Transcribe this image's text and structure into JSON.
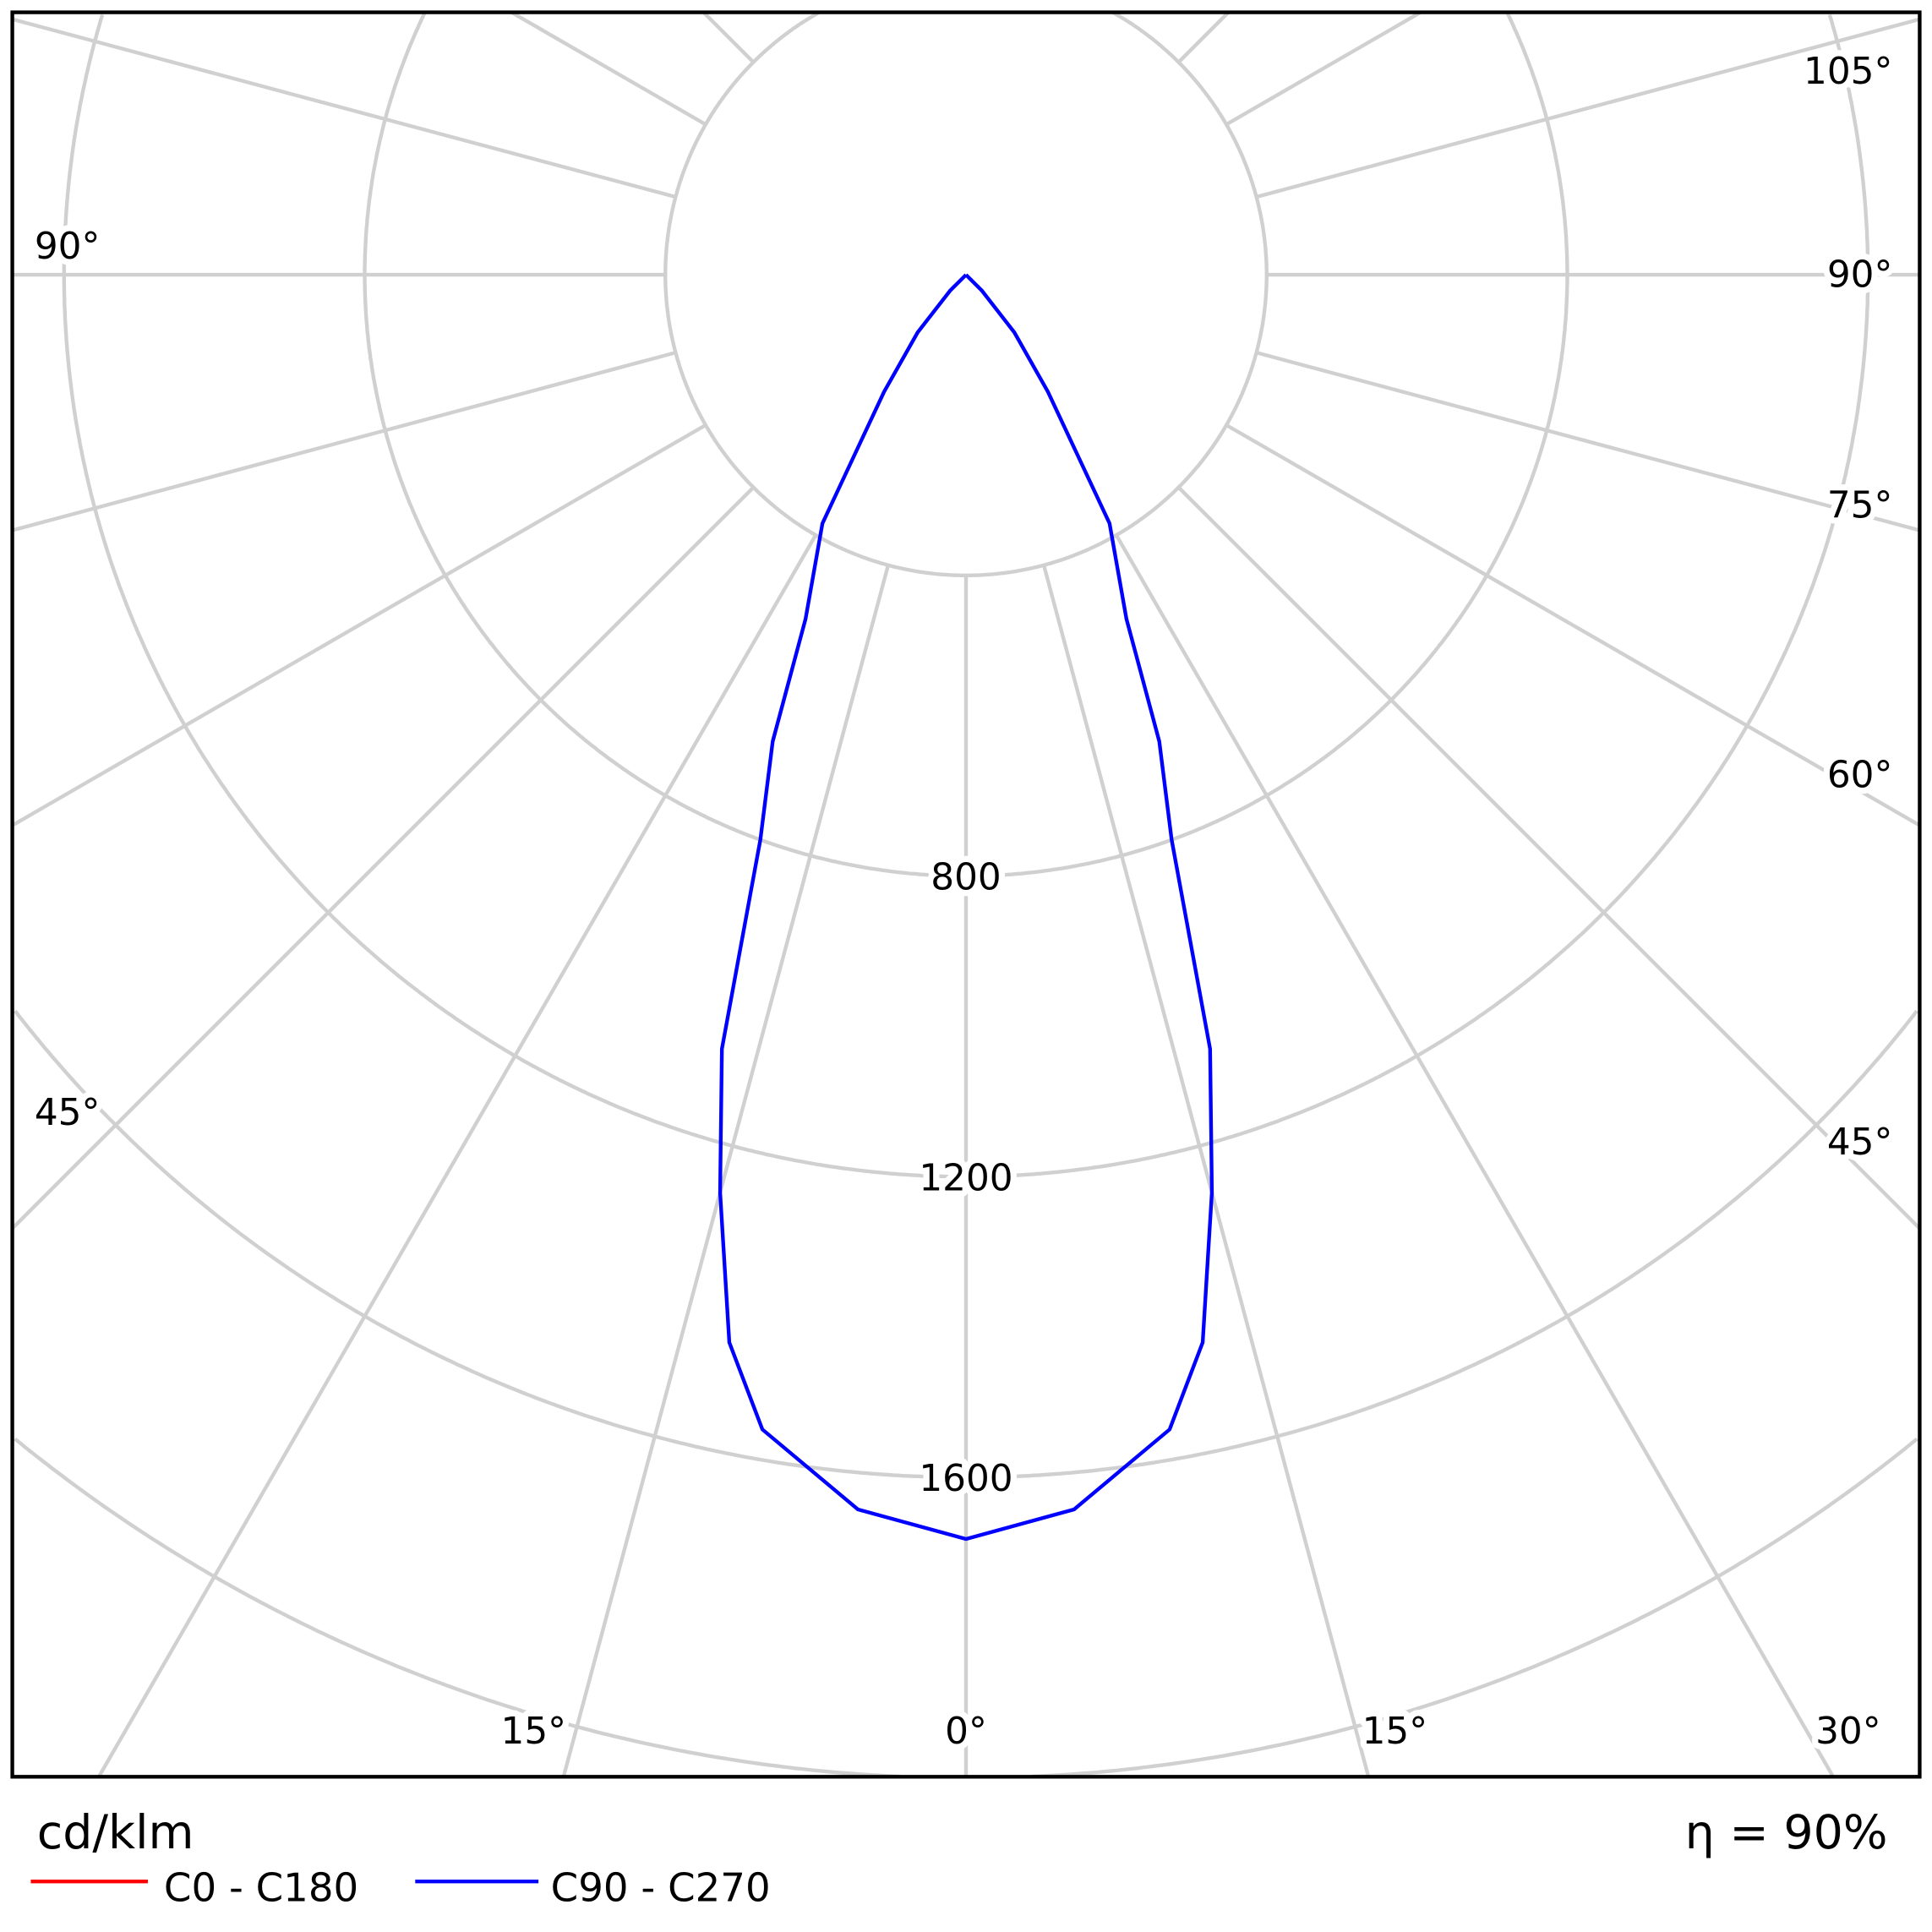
{
  "chart_data": {
    "type": "polar-line",
    "unit_label": "cd/klm",
    "efficiency_label": "η = 90%",
    "radial_ticks": [
      800,
      1200,
      1600
    ],
    "radial_grid_step": 400,
    "angle_grid_step_deg": 15,
    "grid": true,
    "angle_labels": {
      "bottom": [
        "15°",
        "0°",
        "15°",
        "30°"
      ],
      "right": [
        "45°",
        "60°",
        "75°",
        "90°",
        "105°"
      ],
      "left": [
        "45°",
        "90°"
      ]
    },
    "legend_placement": "bottom-left",
    "series": [
      {
        "name": "C0 - C180",
        "color": "#ff0000",
        "points": []
      },
      {
        "name": "C90 - C270",
        "color": "#0000ff",
        "symmetric": true,
        "points": [
          [
            0,
            1682
          ],
          [
            5,
            1649
          ],
          [
            10,
            1560
          ],
          [
            12.5,
            1455
          ],
          [
            15,
            1264
          ],
          [
            17.5,
            1080
          ],
          [
            20,
            800
          ],
          [
            22.5,
            672
          ],
          [
            25,
            505
          ],
          [
            30,
            382
          ],
          [
            35,
            190
          ],
          [
            40,
            100
          ],
          [
            45,
            30
          ],
          [
            50,
            0
          ]
        ]
      }
    ],
    "colors": {
      "grid": "#d0d0d0",
      "frame": "#000000"
    }
  }
}
